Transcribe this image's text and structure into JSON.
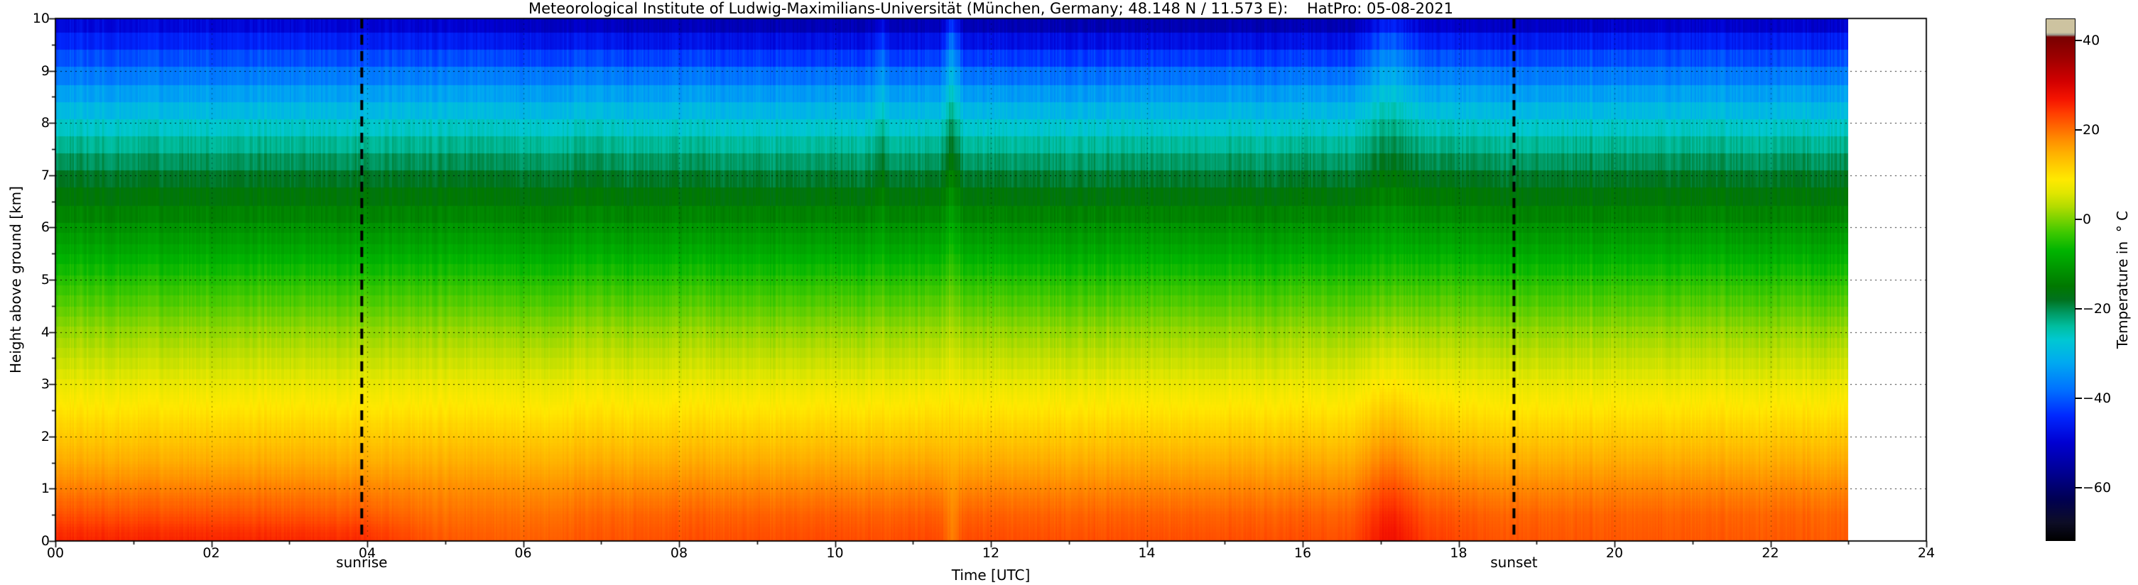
{
  "title": "Meteorological Institute of Ludwig-Maximilians-Universität (München, Germany; 48.148 N / 11.573 E):    HatPro: 05-08-2021",
  "axes": {
    "x_label": "Time [UTC]",
    "y_label": "Height above ground [km]",
    "x_ticks": [
      "00",
      "02",
      "04",
      "06",
      "08",
      "10",
      "12",
      "14",
      "16",
      "18",
      "20",
      "22",
      "24"
    ],
    "y_ticks": [
      "0",
      "1",
      "2",
      "3",
      "4",
      "5",
      "6",
      "7",
      "8",
      "9",
      "10"
    ],
    "colorbar_label": "Temperature in  ° C",
    "colorbar_ticks": [
      "40",
      "20",
      "0",
      "−20",
      "−40",
      "−60"
    ]
  },
  "annotations": {
    "sunrise": {
      "label": "sunrise",
      "time": 3.93
    },
    "sunset": {
      "label": "sunset",
      "time": 18.71
    }
  },
  "chart_data": {
    "type": "heatmap",
    "title": "Meteorological Institute of Ludwig-Maximilians-Universität (München, Germany; 48.148 N / 11.573 E):    HatPro: 05-08-2021",
    "xlabel": "Time [UTC]",
    "ylabel": "Height above ground [km]",
    "x_range": [
      0,
      24
    ],
    "data_x_max": 23,
    "y_range": [
      0,
      10
    ],
    "value_range": [
      -72,
      45
    ],
    "colorbar_tick_values": [
      40,
      20,
      0,
      -20,
      -40,
      -60
    ],
    "heights": [
      0,
      0.25,
      0.5,
      1,
      1.5,
      2,
      2.5,
      3,
      3.5,
      4,
      4.5,
      5,
      5.5,
      6,
      6.5,
      7,
      7.5,
      8,
      8.5,
      9,
      9.5,
      10
    ],
    "profiles": [
      {
        "t": 0,
        "temps": [
          26,
          24.5,
          22.5,
          19,
          15.5,
          12.5,
          9.5,
          7,
          4,
          1.5,
          -1.5,
          -4.5,
          -8,
          -11.5,
          -15,
          -18.5,
          -22.5,
          -27,
          -32,
          -38,
          -44,
          -50
        ]
      },
      {
        "t": 2,
        "temps": [
          26,
          24.5,
          22.5,
          19,
          15.5,
          12.5,
          9.5,
          7,
          4,
          1.5,
          -1.5,
          -4.5,
          -8,
          -11.5,
          -15,
          -18.5,
          -22.5,
          -27,
          -32,
          -38,
          -44,
          -50
        ]
      },
      {
        "t": 3.9,
        "temps": [
          25.5,
          24,
          22,
          18.8,
          15.4,
          12.5,
          9.5,
          7,
          4,
          1.5,
          -1.5,
          -4.5,
          -8,
          -11.5,
          -15,
          -18.5,
          -22.5,
          -27,
          -32,
          -38,
          -44.5,
          -51
        ]
      },
      {
        "t": 4.9,
        "temps": [
          22,
          21,
          20,
          17.8,
          15,
          12.3,
          9.4,
          7,
          4,
          1.5,
          -1.5,
          -4.5,
          -8,
          -11.5,
          -15,
          -18.5,
          -22.5,
          -27,
          -32,
          -38,
          -45,
          -51.5
        ]
      },
      {
        "t": 6,
        "temps": [
          21.5,
          20.8,
          20,
          17.8,
          15,
          12.3,
          9.4,
          7,
          4,
          1.5,
          -1.5,
          -4.5,
          -8,
          -11.5,
          -15,
          -18.5,
          -22.5,
          -27,
          -32,
          -38,
          -45.5,
          -52.5
        ]
      },
      {
        "t": 7.5,
        "temps": [
          22.5,
          21.8,
          21,
          18.3,
          15.3,
          12.4,
          9.5,
          7,
          4,
          1.5,
          -1.5,
          -4.5,
          -8,
          -11.5,
          -15,
          -18.8,
          -22.8,
          -27.3,
          -32.3,
          -38.5,
          -46,
          -54
        ]
      },
      {
        "t": 9.5,
        "temps": [
          23,
          22.2,
          21.3,
          18.5,
          15.5,
          12.5,
          9.5,
          7,
          4,
          1.5,
          -1.5,
          -4.5,
          -8,
          -11.5,
          -15.2,
          -19,
          -23,
          -27.5,
          -32.5,
          -39,
          -46.5,
          -54.5
        ]
      },
      {
        "t": 10.45,
        "temps": [
          23,
          22.2,
          21.3,
          18.5,
          15.5,
          12.5,
          9.5,
          7,
          4,
          1.5,
          -1.5,
          -4.5,
          -8,
          -11.5,
          -15.2,
          -19,
          -23,
          -27.5,
          -32.5,
          -39,
          -46.5,
          -54.5
        ]
      },
      {
        "t": 10.6,
        "temps": [
          22.5,
          21.8,
          21,
          18.3,
          15.4,
          12.5,
          9.6,
          7.2,
          4.3,
          2,
          -1,
          -4,
          -7.2,
          -10.3,
          -13.5,
          -16.8,
          -20.3,
          -24.3,
          -29,
          -35,
          -42,
          -50
        ]
      },
      {
        "t": 10.75,
        "temps": [
          23,
          22.2,
          21.3,
          18.5,
          15.5,
          12.5,
          9.5,
          7,
          4,
          1.5,
          -1.5,
          -4.5,
          -8,
          -11.5,
          -15.2,
          -19,
          -23,
          -27.5,
          -32.5,
          -39,
          -46.5,
          -54.5
        ]
      },
      {
        "t": 11.35,
        "temps": [
          23,
          22.2,
          21.3,
          18.5,
          15.5,
          12.5,
          9.5,
          7,
          4,
          1.5,
          -1.5,
          -4.5,
          -8,
          -11.5,
          -15.2,
          -19,
          -23,
          -27.5,
          -32.5,
          -39,
          -46.5,
          -54.5
        ]
      },
      {
        "t": 11.5,
        "temps": [
          19,
          18.6,
          18.2,
          16.8,
          14.8,
          12.4,
          10.2,
          8.2,
          5.8,
          3.2,
          0.6,
          -2,
          -4.8,
          -7.6,
          -10.6,
          -13.6,
          -17,
          -20.6,
          -24.8,
          -29.8,
          -36,
          -44
        ]
      },
      {
        "t": 11.65,
        "temps": [
          23,
          22.2,
          21.3,
          18.5,
          15.5,
          12.5,
          9.5,
          7,
          4,
          1.5,
          -1.5,
          -4.5,
          -8,
          -11.5,
          -15.2,
          -19,
          -23,
          -27.5,
          -32.5,
          -39,
          -46.5,
          -54.5
        ]
      },
      {
        "t": 13,
        "temps": [
          22.8,
          22,
          21.2,
          18.5,
          15.5,
          12.5,
          9.5,
          7,
          4,
          1.5,
          -1.5,
          -4.5,
          -8,
          -11.5,
          -15.2,
          -19,
          -23,
          -27.5,
          -32.5,
          -39,
          -46.5,
          -55
        ]
      },
      {
        "t": 15,
        "temps": [
          22.8,
          22,
          21.2,
          18.5,
          15.5,
          12.5,
          9.5,
          7,
          4,
          1.5,
          -1.5,
          -4.5,
          -8,
          -11.5,
          -15.2,
          -19,
          -23,
          -27.5,
          -32.5,
          -39,
          -46.5,
          -55
        ]
      },
      {
        "t": 16.6,
        "temps": [
          22.8,
          22,
          21.2,
          18.5,
          15.5,
          12.5,
          9.5,
          7,
          4,
          1.5,
          -1.5,
          -4.5,
          -8,
          -11.5,
          -15.2,
          -19,
          -23,
          -27.5,
          -32.5,
          -39,
          -46.5,
          -55
        ]
      },
      {
        "t": 17.1,
        "temps": [
          28,
          27.2,
          26.2,
          23,
          19.5,
          16,
          12.5,
          9.2,
          5.8,
          2.6,
          -0.6,
          -3.8,
          -7,
          -10,
          -13,
          -16,
          -19.4,
          -23,
          -27,
          -32,
          -38.5,
          -46.5
        ]
      },
      {
        "t": 17.6,
        "temps": [
          24,
          23.2,
          22.3,
          19.6,
          16.4,
          13.3,
          10.2,
          7.5,
          4.4,
          1.8,
          -1.2,
          -4.3,
          -7.7,
          -11.2,
          -14.7,
          -18.2,
          -22.2,
          -26.7,
          -31.7,
          -37.7,
          -44.5,
          -52.5
        ]
      },
      {
        "t": 18.3,
        "temps": [
          22.5,
          21.9,
          21.2,
          18.5,
          15.5,
          12.5,
          9.5,
          7,
          4,
          1.5,
          -1.5,
          -4.5,
          -8,
          -11.5,
          -15,
          -18.5,
          -22.5,
          -27,
          -32,
          -38,
          -45,
          -53
        ]
      },
      {
        "t": 20,
        "temps": [
          22,
          21.5,
          21,
          18.5,
          15.5,
          12.5,
          9.5,
          7,
          4,
          1.5,
          -1.5,
          -4.5,
          -8,
          -11.5,
          -15,
          -18.5,
          -22.5,
          -27,
          -32,
          -38,
          -44.5,
          -52
        ]
      },
      {
        "t": 21.5,
        "temps": [
          22,
          21.5,
          21,
          18.5,
          15.5,
          12.5,
          9.5,
          7,
          4,
          1.5,
          -1.5,
          -4.5,
          -8,
          -11.5,
          -15,
          -18.5,
          -22.5,
          -27,
          -32,
          -38,
          -44.5,
          -52
        ]
      },
      {
        "t": 23,
        "temps": [
          21.8,
          21.3,
          20.8,
          18.4,
          15.4,
          12.5,
          9.5,
          7,
          4,
          1.5,
          -1.5,
          -4.5,
          -8,
          -11.5,
          -15,
          -18.5,
          -22.5,
          -27,
          -32,
          -38,
          -44.5,
          -52
        ]
      }
    ],
    "colormap": [
      [
        -72,
        "#000000"
      ],
      [
        -68,
        "#0d0d26"
      ],
      [
        -63,
        "#000050"
      ],
      [
        -57,
        "#000090"
      ],
      [
        -50,
        "#0000d2"
      ],
      [
        -44,
        "#0028ff"
      ],
      [
        -38,
        "#0073ff"
      ],
      [
        -32,
        "#00aaf0"
      ],
      [
        -27,
        "#00c8d2"
      ],
      [
        -24,
        "#00bea0"
      ],
      [
        -21,
        "#009a64"
      ],
      [
        -18,
        "#00721e"
      ],
      [
        -15,
        "#007800"
      ],
      [
        -11,
        "#009600"
      ],
      [
        -7,
        "#00b400"
      ],
      [
        -3,
        "#3cc800"
      ],
      [
        0,
        "#78d200"
      ],
      [
        3,
        "#b4dc00"
      ],
      [
        6,
        "#e1e600"
      ],
      [
        9,
        "#ffe900"
      ],
      [
        12,
        "#ffcd00"
      ],
      [
        15,
        "#ffaf00"
      ],
      [
        18,
        "#ff8c00"
      ],
      [
        21,
        "#ff6400"
      ],
      [
        24,
        "#ff3c00"
      ],
      [
        27,
        "#f51400"
      ],
      [
        31,
        "#d20000"
      ],
      [
        36,
        "#a00000"
      ],
      [
        41,
        "#780000"
      ],
      [
        41.5,
        "#9a9a8c"
      ],
      [
        42,
        "#cdc3a0"
      ],
      [
        45,
        "#cdc3a0"
      ]
    ]
  }
}
